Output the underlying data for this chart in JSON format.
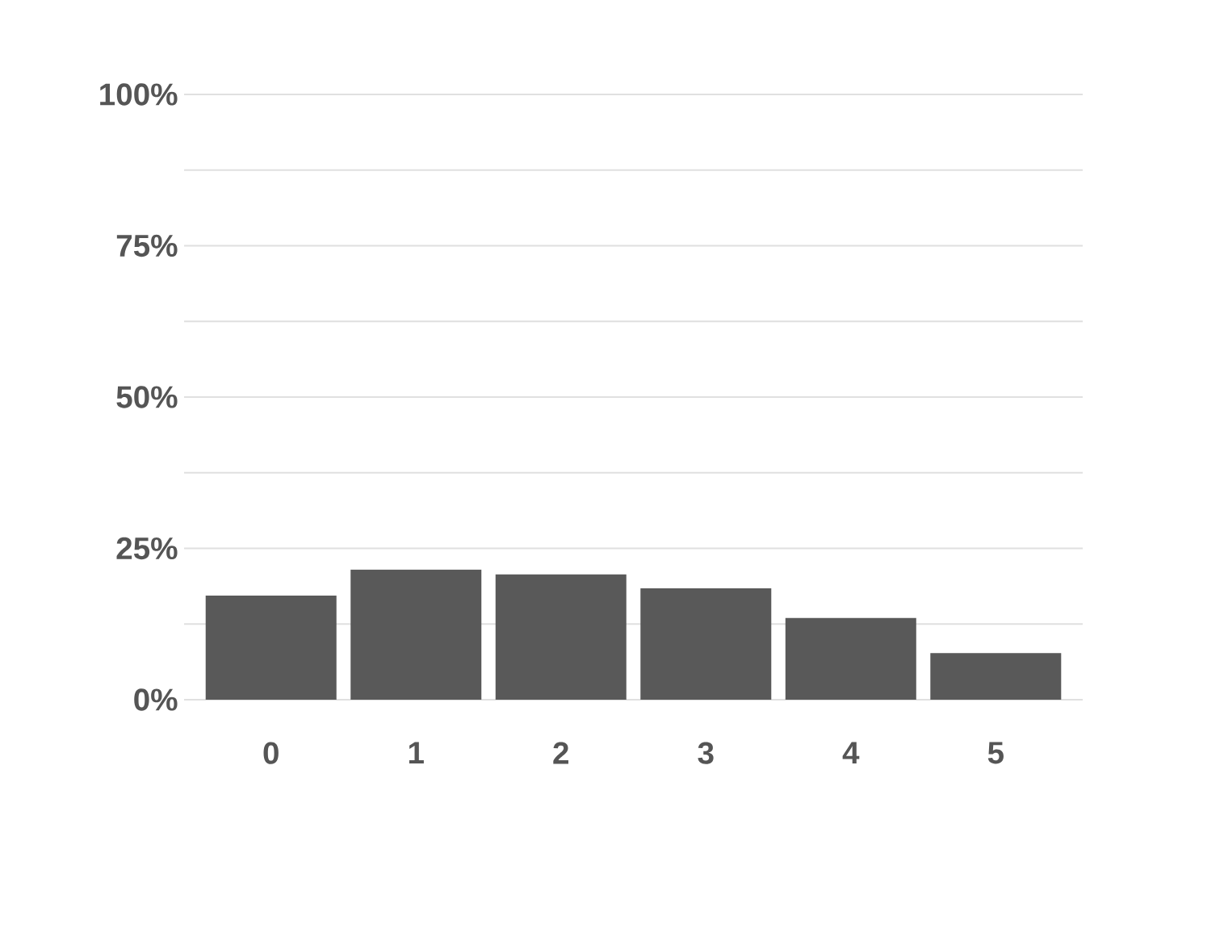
{
  "chart_data": {
    "type": "bar",
    "categories": [
      "0",
      "1",
      "2",
      "3",
      "4",
      "5"
    ],
    "values": [
      17.2,
      21.5,
      20.7,
      18.4,
      13.5,
      7.7
    ],
    "color": "#595959",
    "ylim": [
      0,
      100
    ],
    "yticks": [
      {
        "value": 0,
        "label": "0%"
      },
      {
        "value": 12.5,
        "label": null
      },
      {
        "value": 25,
        "label": "25%"
      },
      {
        "value": 37.5,
        "label": null
      },
      {
        "value": 50,
        "label": "50%"
      },
      {
        "value": 62.5,
        "label": null
      },
      {
        "value": 75,
        "label": "75%"
      },
      {
        "value": 87.5,
        "label": null
      },
      {
        "value": 100,
        "label": "100%"
      }
    ],
    "grid": "y"
  }
}
